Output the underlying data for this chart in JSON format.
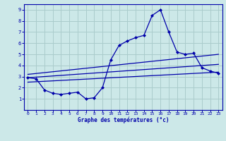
{
  "background_color": "#cce8e8",
  "grid_color": "#aacccc",
  "line_color": "#0000aa",
  "marker_color": "#0000cc",
  "xlabel": "Graphe des températures (°c)",
  "xlim": [
    -0.5,
    23.5
  ],
  "ylim": [
    0,
    9.5
  ],
  "xticks": [
    0,
    1,
    2,
    3,
    4,
    5,
    6,
    7,
    8,
    9,
    10,
    11,
    12,
    13,
    14,
    15,
    16,
    17,
    18,
    19,
    20,
    21,
    22,
    23
  ],
  "yticks": [
    1,
    2,
    3,
    4,
    5,
    6,
    7,
    8,
    9
  ],
  "series": {
    "actual_temp": {
      "x": [
        0,
        1,
        2,
        3,
        4,
        5,
        6,
        7,
        8,
        9,
        10,
        11,
        12,
        13,
        14,
        15,
        16,
        17,
        18,
        19,
        20,
        21,
        22,
        23
      ],
      "y": [
        2.9,
        2.8,
        1.8,
        1.5,
        1.4,
        1.5,
        1.6,
        1.0,
        1.1,
        2.0,
        4.5,
        5.8,
        6.2,
        6.5,
        6.7,
        8.5,
        9.0,
        7.0,
        5.2,
        5.0,
        5.1,
        3.8,
        3.5,
        3.3
      ]
    },
    "avg_high": {
      "x": [
        0,
        23
      ],
      "y": [
        3.2,
        5.0
      ]
    },
    "avg_low": {
      "x": [
        0,
        23
      ],
      "y": [
        2.5,
        3.4
      ]
    },
    "avg_mid": {
      "x": [
        0,
        23
      ],
      "y": [
        2.9,
        4.1
      ]
    }
  }
}
